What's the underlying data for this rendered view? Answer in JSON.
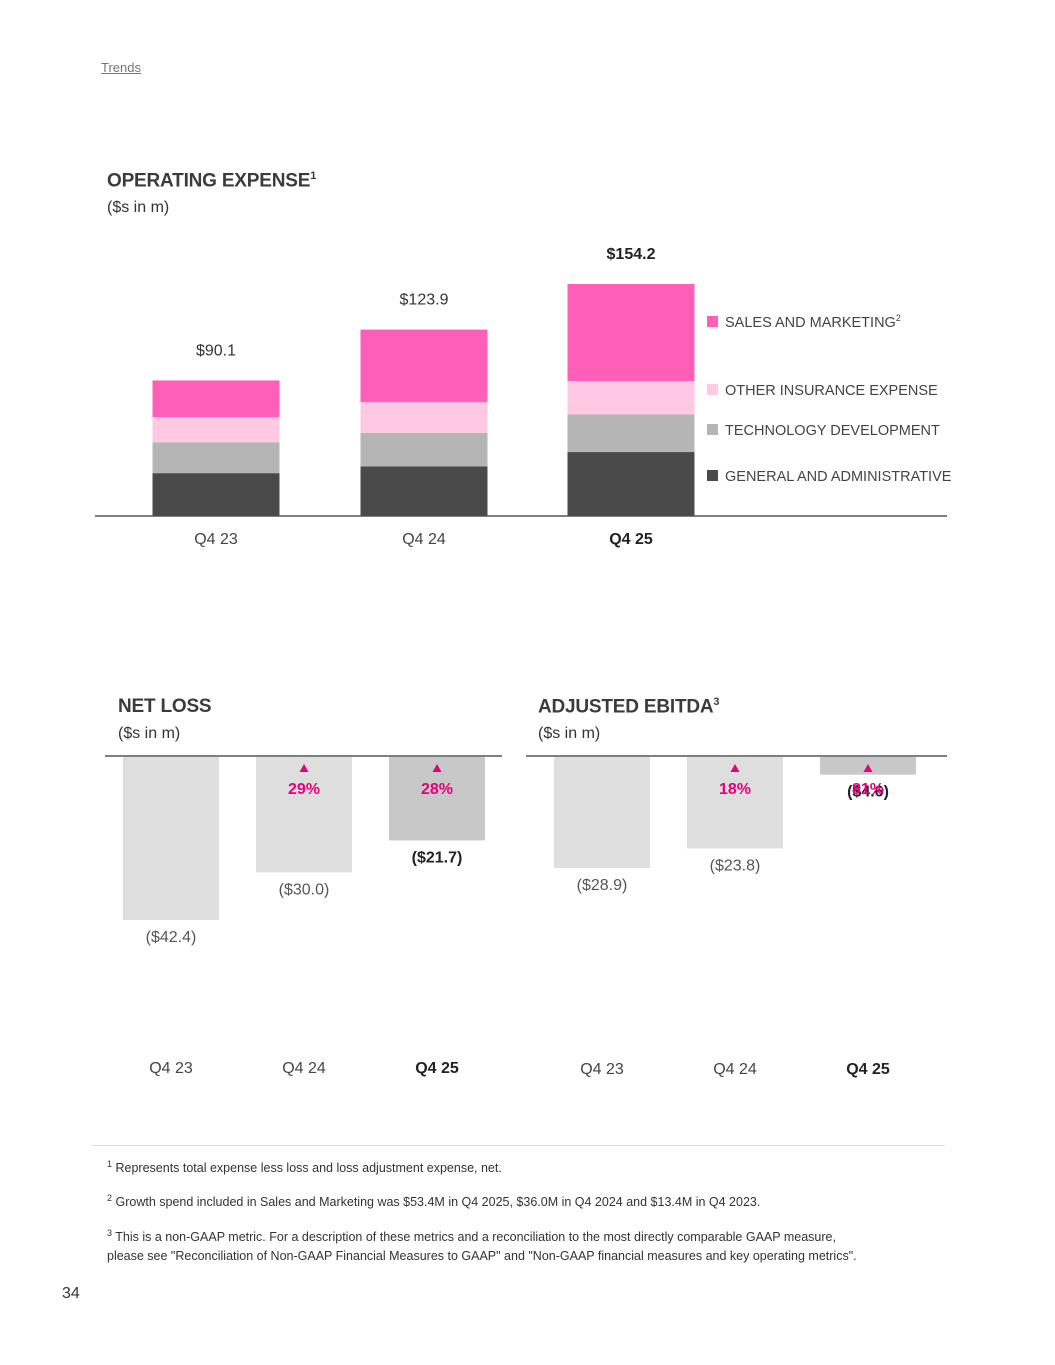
{
  "header": {
    "breadcrumb": "Trends"
  },
  "opex": {
    "title": "OPERATING EXPENSE",
    "title_sup": "1",
    "subtitle": "($s in m)"
  },
  "netloss": {
    "title": "NET LOSS",
    "subtitle": "($s in m)"
  },
  "ebitda": {
    "title": "ADJUSTED EBITDA",
    "title_sup": "3",
    "subtitle": "($s in m)"
  },
  "chart_data": [
    {
      "id": "opex",
      "type": "bar",
      "stacked": true,
      "title": "OPERATING EXPENSE",
      "subtitle": "($s in m)",
      "categories": [
        "Q4 23",
        "Q4 24",
        "Q4 25"
      ],
      "bold_category": "Q4 25",
      "totals": [
        90.1,
        123.9,
        154.2
      ],
      "total_labels": [
        "$90.1",
        "$123.9",
        "$154.2"
      ],
      "series": [
        {
          "name": "GENERAL AND ADMINISTRATIVE",
          "color": "#4a4a4a",
          "values": [
            28.5,
            33.0,
            42.5
          ]
        },
        {
          "name": "TECHNOLOGY DEVELOPMENT",
          "color": "#b5b5b5",
          "values": [
            20.5,
            22.3,
            25.0
          ]
        },
        {
          "name": "OTHER INSURANCE EXPENSE",
          "color": "#ffc9e3",
          "values": [
            16.6,
            20.3,
            22.2
          ]
        },
        {
          "name": "SALES AND MARKETING",
          "name_sup": "2",
          "color": "#ff5fb8",
          "values": [
            24.5,
            48.3,
            64.5
          ]
        }
      ],
      "legend_position": "right",
      "ylim": [
        0,
        154.2
      ]
    },
    {
      "id": "netloss",
      "type": "bar",
      "title": "NET LOSS",
      "subtitle": "($s in m)",
      "categories": [
        "Q4 23",
        "Q4 24",
        "Q4 25"
      ],
      "bold_category": "Q4 25",
      "values": [
        -42.4,
        -30.0,
        -21.7
      ],
      "labels": [
        "($42.4)",
        "($30.0)",
        "($21.7)"
      ],
      "improvement": [
        "",
        "29%",
        "28%"
      ],
      "bar_colors": [
        "#dedede",
        "#dedede",
        "#c8c8c8"
      ],
      "accent_color": "#e6007e",
      "ylim": [
        -42.4,
        0
      ]
    },
    {
      "id": "ebitda",
      "type": "bar",
      "title": "ADJUSTED EBITDA",
      "subtitle": "($s in m)",
      "categories": [
        "Q4 23",
        "Q4 24",
        "Q4 25"
      ],
      "bold_category": "Q4 25",
      "values": [
        -28.9,
        -23.8,
        -4.6
      ],
      "labels": [
        "($28.9)",
        "($23.8)",
        "($4.6)"
      ],
      "improvement": [
        "",
        "18%",
        "81%"
      ],
      "bar_colors": [
        "#dedede",
        "#dedede",
        "#c8c8c8"
      ],
      "accent_color": "#e6007e",
      "ylim": [
        -28.9,
        0
      ]
    }
  ],
  "footnotes": [
    {
      "sup": "1",
      "text": " Represents total expense less loss and loss adjustment expense, net."
    },
    {
      "sup": "2",
      "text": " Growth spend included in Sales and Marketing was $53.4M in Q4 2025, $36.0M in Q4 2024 and $13.4M in Q4 2023."
    },
    {
      "sup": "3",
      "text": " This is a non-GAAP metric. For a description of these metrics and a reconciliation to the most directly comparable GAAP measure, please see \"Reconciliation of Non-GAAP Financial Measures to GAAP\" and \"Non-GAAP financial measures and key operating metrics\"."
    }
  ],
  "page_number": "34"
}
